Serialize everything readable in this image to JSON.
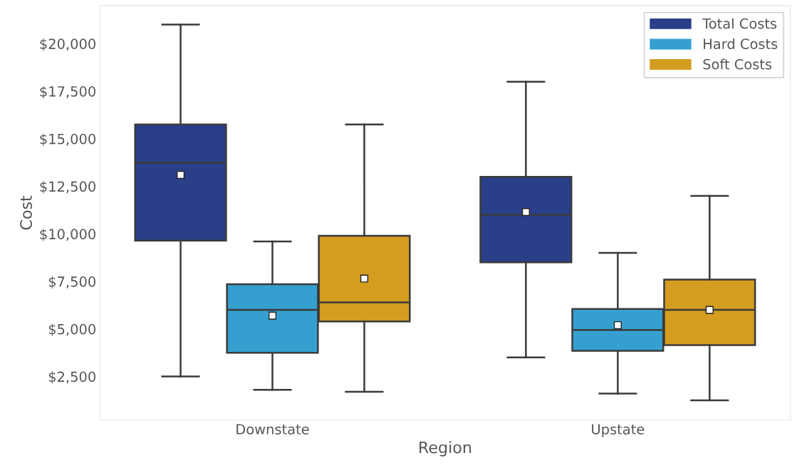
{
  "chart_data": {
    "type": "box",
    "xlabel": "Region",
    "ylabel": "Cost",
    "categories": [
      "Downstate",
      "Upstate"
    ],
    "ylim": [
      200,
      22000
    ],
    "yticks": [
      {
        "value": 2500,
        "label": "$2,500"
      },
      {
        "value": 5000,
        "label": "$5,000"
      },
      {
        "value": 7500,
        "label": "$7,500"
      },
      {
        "value": 10000,
        "label": "$10,000"
      },
      {
        "value": 12500,
        "label": "$12,500"
      },
      {
        "value": 15000,
        "label": "$15,000"
      },
      {
        "value": 17500,
        "label": "$17,500"
      },
      {
        "value": 20000,
        "label": "$20,000"
      }
    ],
    "legend": "top right",
    "grid": false,
    "series": [
      {
        "name": "Total Costs",
        "color": "#2a3f87",
        "boxes": [
          {
            "low": 2500,
            "q1": 9650,
            "median": 13750,
            "q3": 15750,
            "high": 21000,
            "mean": 13100
          },
          {
            "low": 3500,
            "q1": 8500,
            "median": 11000,
            "q3": 13000,
            "high": 18000,
            "mean": 11150
          }
        ]
      },
      {
        "name": "Hard Costs",
        "color": "#35a0cf",
        "boxes": [
          {
            "low": 1800,
            "q1": 3750,
            "median": 6000,
            "q3": 7350,
            "high": 9600,
            "mean": 5700
          },
          {
            "low": 1600,
            "q1": 3850,
            "median": 4950,
            "q3": 6050,
            "high": 9000,
            "mean": 5200
          }
        ]
      },
      {
        "name": "Soft Costs",
        "color": "#d49d1f",
        "boxes": [
          {
            "low": 1700,
            "q1": 5400,
            "median": 6400,
            "q3": 9900,
            "high": 15750,
            "mean": 7650
          },
          {
            "low": 1250,
            "q1": 4150,
            "median": 6000,
            "q3": 7600,
            "high": 12000,
            "mean": 6000
          }
        ]
      }
    ]
  }
}
